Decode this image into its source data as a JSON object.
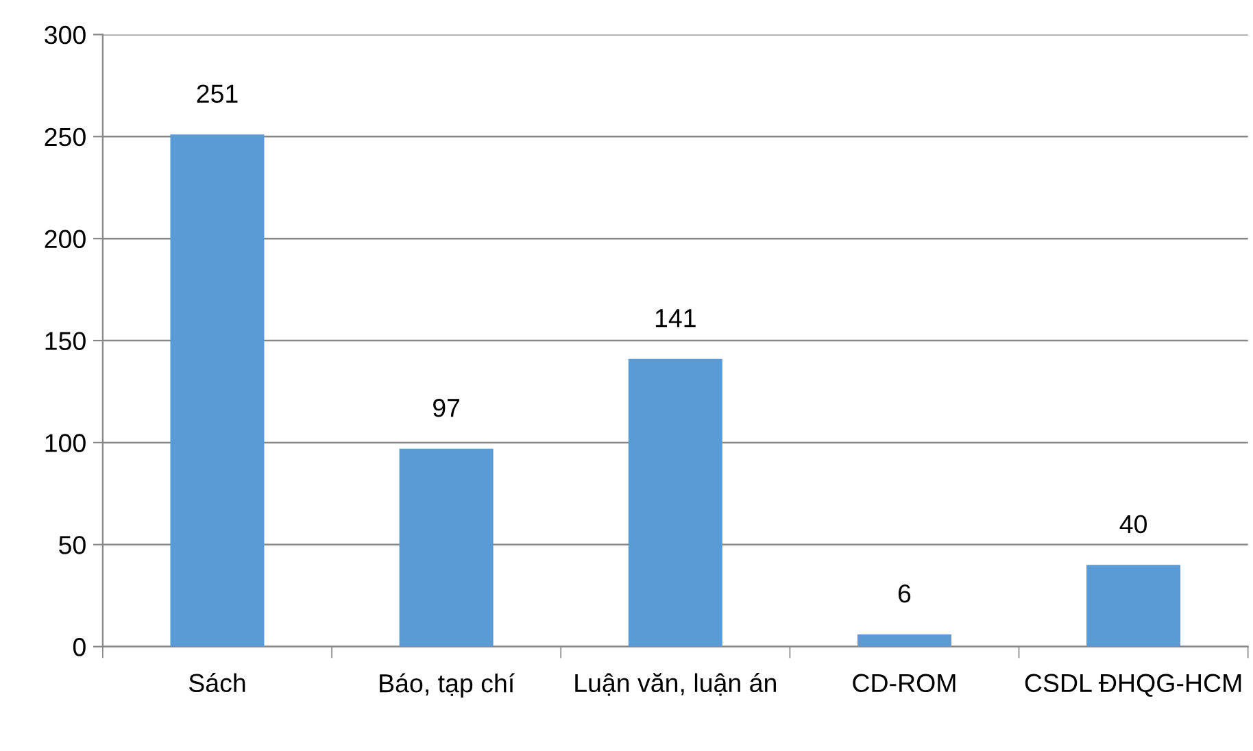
{
  "chart_data": {
    "type": "bar",
    "categories": [
      "Sách",
      "Báo, tạp chí",
      "Luận văn, luận án",
      "CD-ROM",
      "CSDL ĐHQG-HCM"
    ],
    "values": [
      251,
      97,
      141,
      6,
      40
    ],
    "color": "#5b9bd5",
    "ylim": [
      0,
      300
    ],
    "yticks": [
      0,
      50,
      100,
      150,
      200,
      250,
      300
    ],
    "grid": "y",
    "data_labels": true,
    "legend": false
  }
}
